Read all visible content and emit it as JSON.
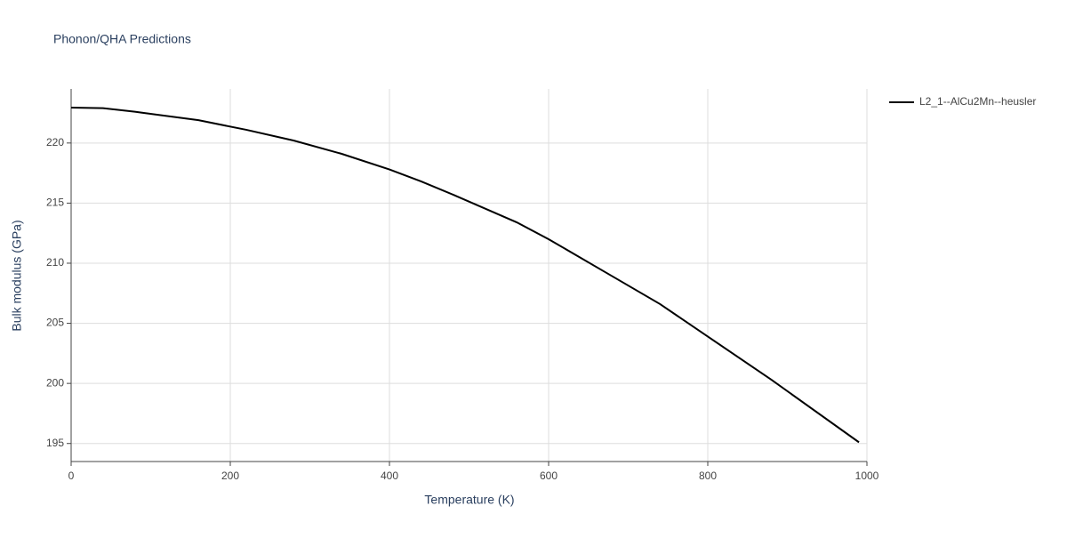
{
  "chart_data": {
    "type": "line",
    "title": "Phonon/QHA Predictions",
    "x_label": "Temperature (K)",
    "y_label": "Bulk modulus (GPa)",
    "x": [
      0,
      40,
      80,
      160,
      220,
      280,
      340,
      400,
      440,
      480,
      560,
      600,
      670,
      740,
      800,
      880,
      990
    ],
    "series": [
      {
        "name": "L2_1--AlCu2Mn--heusler",
        "color": "#000000",
        "values": [
          222.95,
          222.9,
          222.6,
          221.9,
          221.1,
          220.2,
          219.1,
          217.8,
          216.8,
          215.7,
          213.4,
          212.0,
          209.3,
          206.6,
          203.9,
          200.3,
          195.1
        ]
      }
    ],
    "xlim": [
      0,
      1000
    ],
    "xticks": [
      0,
      200,
      400,
      600,
      800,
      1000
    ],
    "ylim": [
      193.5,
      224.5
    ],
    "yticks": [
      195,
      200,
      205,
      210,
      215,
      220
    ],
    "grid": true,
    "legend": "right"
  }
}
